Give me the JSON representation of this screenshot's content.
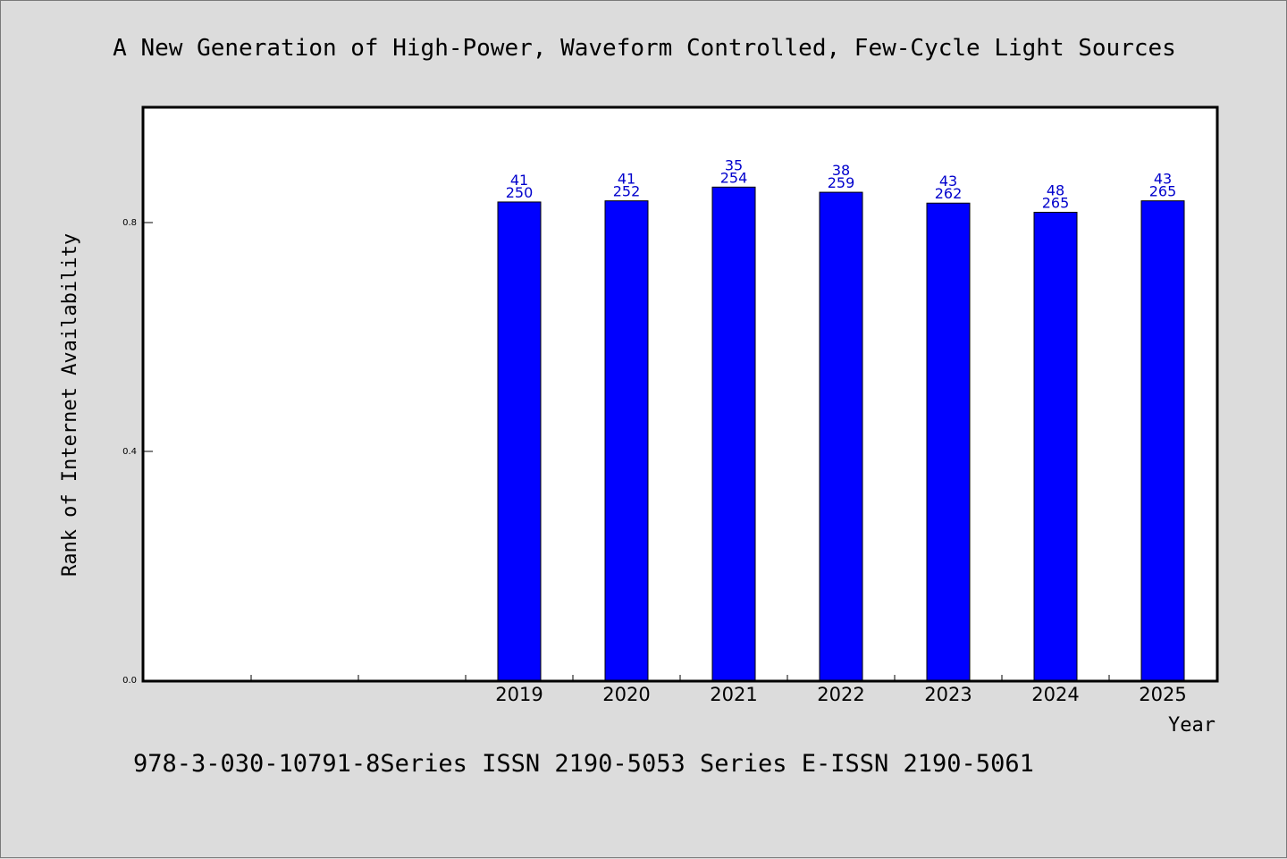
{
  "chart_data": {
    "type": "bar",
    "title": "A New Generation of High-Power, Waveform Controlled, Few-Cycle Light Sources",
    "xlabel": "Year",
    "ylabel": "Rank of Internet Availability",
    "footer": "978-3-030-10791-8Series ISSN 2190-5053 Series E-ISSN 2190-5061",
    "ylim": [
      0.0,
      1.0
    ],
    "yticks": [
      0.0,
      0.4,
      0.8
    ],
    "ytick_labels": [
      "0.0",
      "0.4",
      "0.8"
    ],
    "grid": false,
    "categories": [
      "",
      "",
      "",
      "2019",
      "2020",
      "2021",
      "2022",
      "2023",
      "2024",
      "2025"
    ],
    "values": [
      null,
      null,
      null,
      0.836,
      0.838,
      0.862,
      0.853,
      0.834,
      0.818,
      0.838
    ],
    "label_top": [
      "",
      "",
      "",
      "41",
      "41",
      "35",
      "38",
      "43",
      "48",
      "43"
    ],
    "label_bottom": [
      "",
      "",
      "",
      "250",
      "252",
      "254",
      "259",
      "262",
      "265",
      "265"
    ],
    "bar_color": "#0000ff",
    "label_color": "#0000cc"
  }
}
